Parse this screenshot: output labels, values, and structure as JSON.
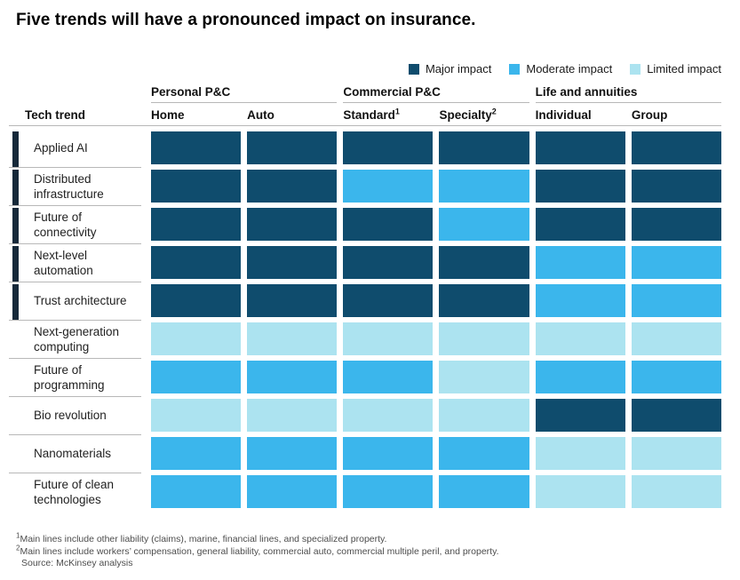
{
  "title": "Five trends will have a pronounced impact on insurance.",
  "legend": [
    {
      "key": "major",
      "label": "Major impact"
    },
    {
      "key": "moderate",
      "label": "Moderate impact"
    },
    {
      "key": "limited",
      "label": "Limited impact"
    }
  ],
  "colors": {
    "major": "#0f4c6d",
    "moderate": "#3bb6ec",
    "limited": "#ace3f0",
    "trend_bar": "#152839",
    "rule": "#b8b8b8"
  },
  "table": {
    "row_header": "Tech trend"
  },
  "chart_data": {
    "type": "heatmap",
    "title": "Five trends will have a pronounced impact on insurance.",
    "value_scale": {
      "major": "Major impact",
      "moderate": "Moderate impact",
      "limited": "Limited impact"
    },
    "column_groups": [
      {
        "label": "Personal P&C",
        "columns": [
          {
            "label": "Home",
            "sup": ""
          },
          {
            "label": "Auto",
            "sup": ""
          }
        ]
      },
      {
        "label": "Commercial P&C",
        "columns": [
          {
            "label": "Standard",
            "sup": "1"
          },
          {
            "label": "Specialty",
            "sup": "2"
          }
        ]
      },
      {
        "label": "Life and annuities",
        "columns": [
          {
            "label": "Individual",
            "sup": ""
          },
          {
            "label": "Group",
            "sup": ""
          }
        ]
      }
    ],
    "columns": [
      "Home",
      "Auto",
      "Standard",
      "Specialty",
      "Individual",
      "Group"
    ],
    "rows": [
      {
        "trend": "Applied AI",
        "highlighted": true,
        "impacts": [
          "major",
          "major",
          "major",
          "major",
          "major",
          "major"
        ]
      },
      {
        "trend": "Distributed infrastructure",
        "highlighted": true,
        "impacts": [
          "major",
          "major",
          "moderate",
          "moderate",
          "major",
          "major"
        ]
      },
      {
        "trend": "Future of connectivity",
        "highlighted": true,
        "impacts": [
          "major",
          "major",
          "major",
          "moderate",
          "major",
          "major"
        ]
      },
      {
        "trend": "Next-level automation",
        "highlighted": true,
        "impacts": [
          "major",
          "major",
          "major",
          "major",
          "moderate",
          "moderate"
        ]
      },
      {
        "trend": "Trust architecture",
        "highlighted": true,
        "impacts": [
          "major",
          "major",
          "major",
          "major",
          "moderate",
          "moderate"
        ]
      },
      {
        "trend": "Next-generation computing",
        "highlighted": false,
        "impacts": [
          "limited",
          "limited",
          "limited",
          "limited",
          "limited",
          "limited"
        ]
      },
      {
        "trend": "Future of programming",
        "highlighted": false,
        "impacts": [
          "moderate",
          "moderate",
          "moderate",
          "limited",
          "moderate",
          "moderate"
        ]
      },
      {
        "trend": "Bio revolution",
        "highlighted": false,
        "impacts": [
          "limited",
          "limited",
          "limited",
          "limited",
          "major",
          "major"
        ]
      },
      {
        "trend": "Nanomaterials",
        "highlighted": false,
        "impacts": [
          "moderate",
          "moderate",
          "moderate",
          "moderate",
          "limited",
          "limited"
        ]
      },
      {
        "trend": "Future of clean technologies",
        "highlighted": false,
        "impacts": [
          "moderate",
          "moderate",
          "moderate",
          "moderate",
          "limited",
          "limited"
        ]
      }
    ]
  },
  "footnotes": [
    {
      "marker": "1",
      "text": "Main lines include other liability (claims), marine, financial lines, and specialized property."
    },
    {
      "marker": "2",
      "text": "Main lines include workers’ compensation, general liability, commercial auto, commercial multiple peril, and property."
    },
    {
      "marker": "",
      "text": "Source: McKinsey analysis"
    }
  ]
}
